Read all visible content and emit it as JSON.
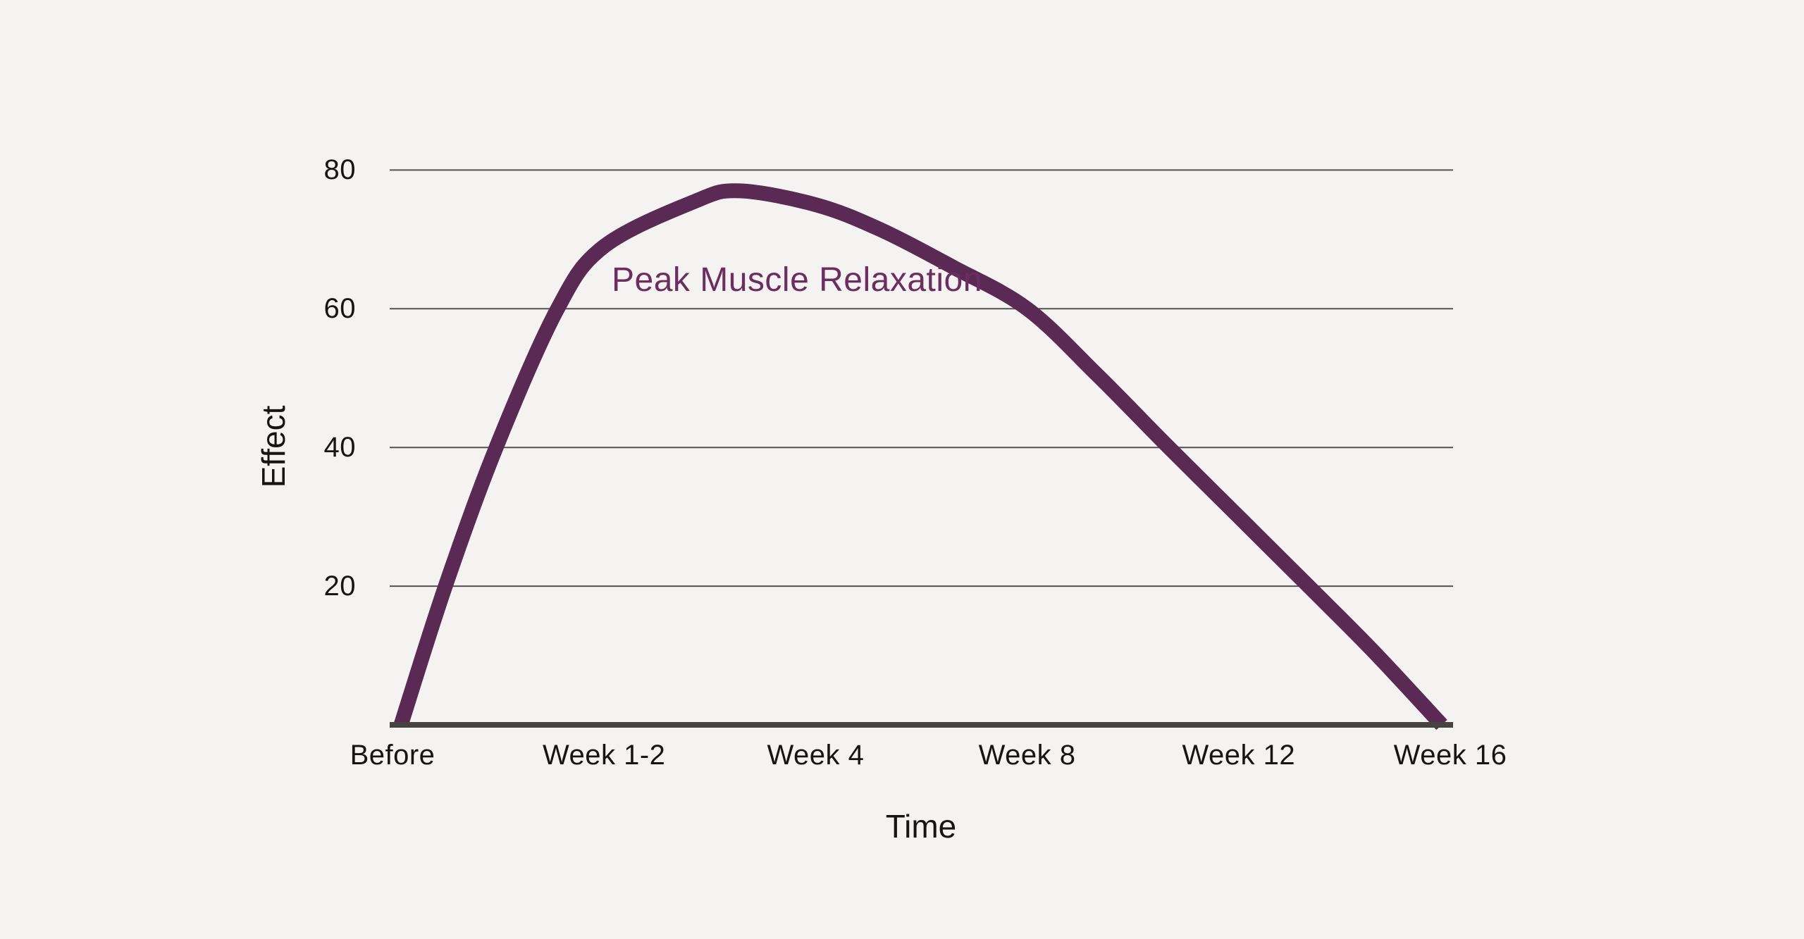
{
  "figure": {
    "background_color": "#f5f3f1",
    "text_color": "#171513",
    "gridline_color": "#55514c",
    "axis_line_color": "#474340"
  },
  "chart_data": {
    "type": "line",
    "title": "",
    "xlabel": "Time",
    "ylabel": "Effect",
    "categories": [
      "Before",
      "Week 1-2",
      "Week 4",
      "Week 8",
      "Week 12",
      "Week 16"
    ],
    "series": [
      {
        "name": "Effect",
        "values": [
          0,
          69,
          75,
          60,
          30,
          0
        ]
      }
    ],
    "peak": {
      "label": "Peak Muscle Relaxation",
      "value": 77,
      "x_between": [
        "Week 1-2",
        "Week 4"
      ],
      "label_color": "#6c2e60"
    },
    "ylim": [
      0,
      85
    ],
    "yticks": [
      20,
      40,
      60,
      80
    ],
    "grid": "horizontal",
    "legend": "none",
    "line_color": "#5b2a54",
    "curve_samples": [
      [
        0.04,
        0
      ],
      [
        0.25,
        20
      ],
      [
        0.49,
        40
      ],
      [
        0.78,
        60
      ],
      [
        1.0,
        69
      ],
      [
        1.43,
        75.5
      ],
      [
        1.64,
        77
      ],
      [
        2.0,
        75
      ],
      [
        2.3,
        71.5
      ],
      [
        2.65,
        66
      ],
      [
        3.0,
        60
      ],
      [
        3.33,
        50.5
      ],
      [
        3.67,
        40
      ],
      [
        4.0,
        30
      ],
      [
        4.33,
        20
      ],
      [
        4.64,
        10.5
      ],
      [
        4.96,
        0
      ]
    ]
  }
}
